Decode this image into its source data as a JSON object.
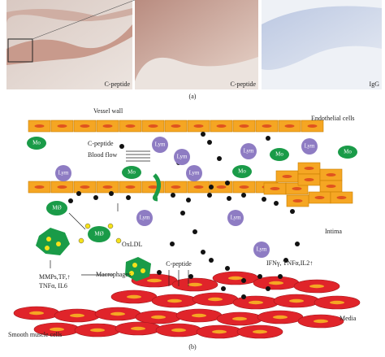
{
  "panel_a": {
    "images": [
      {
        "label": "C-peptide"
      },
      {
        "label": "C-peptide"
      },
      {
        "label": "IgG"
      }
    ],
    "caption": "(a)"
  },
  "panel_b": {
    "caption": "(b)",
    "vessel_wall": "Vessel wall",
    "endothelial_cells": "Endothelial cells",
    "c_peptide_top": "C-peptide",
    "blood_flow": "Blood flow",
    "monocytes": [
      "Mo",
      "Mo",
      "Mo",
      "Mo",
      "Mo"
    ],
    "lymphocytes": [
      "Lym",
      "Lym",
      "Lym",
      "Lym",
      "Lym",
      "Lym",
      "Lym",
      "Lym",
      "Lym"
    ],
    "macrophages": [
      "MØ",
      "MØ"
    ],
    "oxldl": "OxLDL",
    "macrophages_label": "Macrophages",
    "cytokines_left": [
      "MMPs,TF,↑",
      "TNFα, IL6"
    ],
    "intima": "Intima",
    "cytokines_right": "IFNγ, TNFα,IL2↑",
    "c_peptide_center": "C-peptide",
    "media": "Media",
    "smooth_muscle_cells": "Smooth muscle cells"
  }
}
